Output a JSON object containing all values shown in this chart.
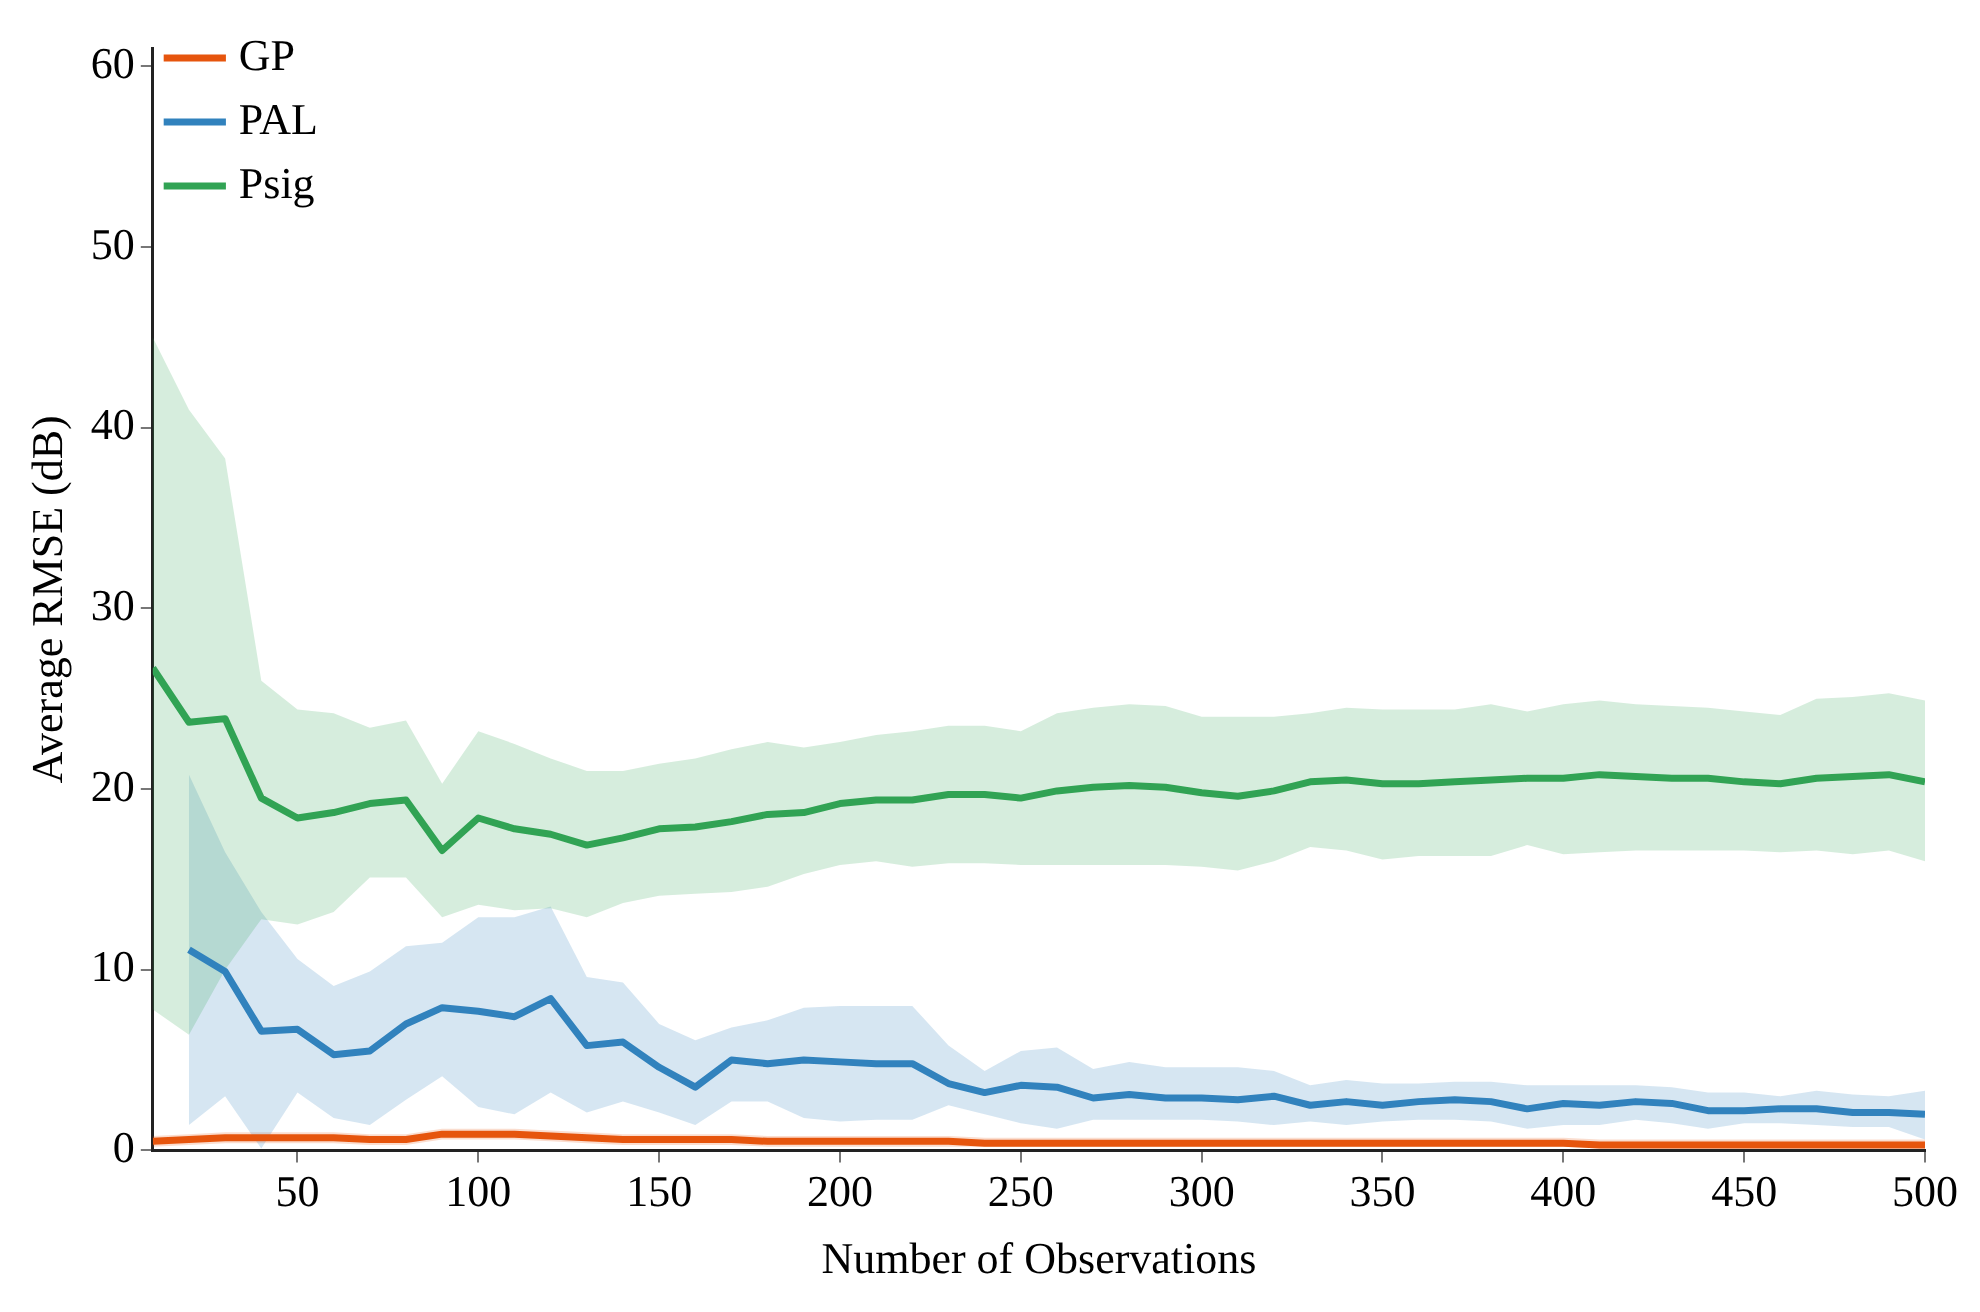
{
  "chart_data": {
    "type": "line",
    "xlabel": "Number of Observations",
    "ylabel": "Average RMSE (dB)",
    "x": [
      10,
      20,
      30,
      40,
      50,
      60,
      70,
      80,
      90,
      100,
      110,
      120,
      130,
      140,
      150,
      160,
      170,
      180,
      190,
      200,
      210,
      220,
      230,
      240,
      250,
      260,
      270,
      280,
      290,
      300,
      310,
      320,
      330,
      340,
      350,
      360,
      370,
      380,
      390,
      400,
      410,
      420,
      430,
      440,
      450,
      460,
      470,
      480,
      490,
      500
    ],
    "series": [
      {
        "name": "GP",
        "color": "#e6550d",
        "values": [
          0.5,
          0.6,
          0.7,
          0.7,
          0.7,
          0.7,
          0.6,
          0.6,
          0.9,
          0.9,
          0.9,
          0.8,
          0.7,
          0.6,
          0.6,
          0.6,
          0.6,
          0.5,
          0.5,
          0.5,
          0.5,
          0.5,
          0.5,
          0.4,
          0.4,
          0.4,
          0.4,
          0.4,
          0.4,
          0.4,
          0.4,
          0.4,
          0.4,
          0.4,
          0.4,
          0.4,
          0.4,
          0.4,
          0.4,
          0.4,
          0.3,
          0.3,
          0.3,
          0.3,
          0.3,
          0.3,
          0.3,
          0.3,
          0.3,
          0.3
        ],
        "lower": [
          0.2,
          0.3,
          0.4,
          0.4,
          0.4,
          0.4,
          0.3,
          0.3,
          0.6,
          0.6,
          0.6,
          0.5,
          0.4,
          0.3,
          0.3,
          0.3,
          0.3,
          0.2,
          0.2,
          0.2,
          0.2,
          0.2,
          0.2,
          0.2,
          0.2,
          0.2,
          0.2,
          0.2,
          0.2,
          0.2,
          0.2,
          0.2,
          0.2,
          0.2,
          0.2,
          0.2,
          0.2,
          0.2,
          0.2,
          0.2,
          0.1,
          0.1,
          0.1,
          0.1,
          0.1,
          0.1,
          0.1,
          0.1,
          0.1,
          0.1
        ],
        "upper": [
          0.8,
          0.9,
          1.0,
          1.0,
          1.0,
          1.0,
          0.9,
          0.9,
          1.2,
          1.2,
          1.2,
          1.1,
          1.0,
          0.9,
          0.9,
          0.9,
          0.9,
          0.8,
          0.8,
          0.8,
          0.8,
          0.8,
          0.8,
          0.7,
          0.7,
          0.7,
          0.7,
          0.7,
          0.7,
          0.7,
          0.7,
          0.7,
          0.7,
          0.7,
          0.7,
          0.7,
          0.7,
          0.7,
          0.7,
          0.7,
          0.6,
          0.6,
          0.6,
          0.6,
          0.6,
          0.6,
          0.6,
          0.6,
          0.6,
          0.6
        ]
      },
      {
        "name": "PAL",
        "color": "#3182bd",
        "x": [
          20,
          30,
          40,
          50,
          60,
          70,
          80,
          90,
          100,
          110,
          120,
          130,
          140,
          150,
          160,
          170,
          180,
          190,
          200,
          210,
          220,
          230,
          240,
          250,
          260,
          270,
          280,
          290,
          300,
          310,
          320,
          330,
          340,
          350,
          360,
          370,
          380,
          390,
          400,
          410,
          420,
          430,
          440,
          450,
          460,
          470,
          480,
          490,
          500
        ],
        "values": [
          11.1,
          9.9,
          6.6,
          6.7,
          5.3,
          5.5,
          7.0,
          7.9,
          7.7,
          7.4,
          8.4,
          5.8,
          6.0,
          4.6,
          3.5,
          5.0,
          4.8,
          5.0,
          4.9,
          4.8,
          4.8,
          3.7,
          3.2,
          3.6,
          3.5,
          2.9,
          3.1,
          2.9,
          2.9,
          2.8,
          3.0,
          2.5,
          2.7,
          2.5,
          2.7,
          2.8,
          2.7,
          2.3,
          2.6,
          2.5,
          2.7,
          2.6,
          2.2,
          2.2,
          2.3,
          2.3,
          2.1,
          2.1,
          2.0
        ],
        "lower": [
          1.4,
          3.0,
          0.1,
          3.2,
          1.8,
          1.4,
          2.8,
          4.1,
          2.4,
          2.0,
          3.2,
          2.1,
          2.7,
          2.1,
          1.4,
          2.7,
          2.7,
          1.8,
          1.6,
          1.7,
          1.7,
          2.5,
          2.0,
          1.5,
          1.2,
          1.7,
          1.7,
          1.7,
          1.7,
          1.6,
          1.4,
          1.6,
          1.4,
          1.6,
          1.7,
          1.7,
          1.6,
          1.2,
          1.4,
          1.4,
          1.7,
          1.5,
          1.2,
          1.5,
          1.5,
          1.4,
          1.3,
          1.3,
          0.6
        ],
        "upper": [
          20.8,
          16.5,
          13.2,
          10.6,
          9.1,
          9.9,
          11.3,
          11.5,
          12.9,
          12.9,
          13.5,
          9.6,
          9.3,
          7.0,
          6.1,
          6.8,
          7.2,
          7.9,
          8.0,
          8.0,
          8.0,
          5.8,
          4.4,
          5.5,
          5.7,
          4.5,
          4.9,
          4.6,
          4.6,
          4.6,
          4.4,
          3.6,
          3.9,
          3.7,
          3.7,
          3.8,
          3.8,
          3.6,
          3.6,
          3.6,
          3.6,
          3.5,
          3.2,
          3.2,
          3.0,
          3.3,
          3.1,
          3.0,
          3.3
        ]
      },
      {
        "name": "Psig",
        "color": "#31a354",
        "values": [
          26.7,
          23.7,
          23.9,
          19.5,
          18.4,
          18.7,
          19.2,
          19.4,
          16.6,
          18.4,
          17.8,
          17.5,
          16.9,
          17.3,
          17.8,
          17.9,
          18.2,
          18.6,
          18.7,
          19.2,
          19.4,
          19.4,
          19.7,
          19.7,
          19.5,
          19.9,
          20.1,
          20.2,
          20.1,
          19.8,
          19.6,
          19.9,
          20.4,
          20.5,
          20.3,
          20.3,
          20.4,
          20.5,
          20.6,
          20.6,
          20.8,
          20.7,
          20.6,
          20.6,
          20.4,
          20.3,
          20.6,
          20.7,
          20.8,
          20.4
        ],
        "lower": [
          7.8,
          6.4,
          10.0,
          12.8,
          12.5,
          13.2,
          15.1,
          15.1,
          12.9,
          13.6,
          13.3,
          13.4,
          12.9,
          13.7,
          14.1,
          14.2,
          14.3,
          14.6,
          15.3,
          15.8,
          16.0,
          15.7,
          15.9,
          15.9,
          15.8,
          15.8,
          15.8,
          15.8,
          15.8,
          15.7,
          15.5,
          16.0,
          16.8,
          16.6,
          16.1,
          16.3,
          16.3,
          16.3,
          16.9,
          16.4,
          16.5,
          16.6,
          16.6,
          16.6,
          16.6,
          16.5,
          16.6,
          16.4,
          16.6,
          16.0
        ],
        "upper": [
          45.0,
          41.0,
          38.3,
          26.0,
          24.4,
          24.2,
          23.4,
          23.8,
          20.3,
          23.2,
          22.5,
          21.7,
          21.0,
          21.0,
          21.4,
          21.7,
          22.2,
          22.6,
          22.3,
          22.6,
          23.0,
          23.2,
          23.5,
          23.5,
          23.2,
          24.2,
          24.5,
          24.7,
          24.6,
          24.0,
          24.0,
          24.0,
          24.2,
          24.5,
          24.4,
          24.4,
          24.4,
          24.7,
          24.3,
          24.7,
          24.9,
          24.7,
          24.6,
          24.5,
          24.3,
          24.1,
          25.0,
          25.1,
          25.3,
          24.9
        ]
      }
    ],
    "xlim": [
      10,
      500
    ],
    "xticks": [
      50,
      100,
      150,
      200,
      250,
      300,
      350,
      400,
      450,
      500
    ],
    "ylim": [
      0,
      61
    ],
    "yticks": [
      0,
      10,
      20,
      30,
      40,
      50,
      60
    ],
    "grid": false,
    "legend": "top left",
    "marker": "none",
    "line_style": "solid"
  }
}
